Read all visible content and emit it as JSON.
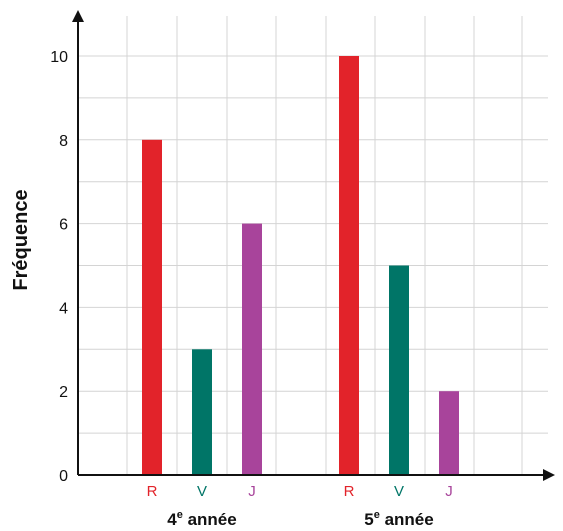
{
  "chart_data": {
    "type": "bar",
    "ylabel": "Fréquence",
    "xlabel": "",
    "ylim": [
      0,
      10.5
    ],
    "yticks": [
      "0",
      "2",
      "4",
      "6",
      "8",
      "10"
    ],
    "grid": true,
    "groups": [
      {
        "label": "4e année",
        "label_base": "4",
        "label_sup": "e",
        "label_rest": " année",
        "bars": [
          {
            "category": "R",
            "value": 8,
            "color": "#e2232a"
          },
          {
            "category": "V",
            "value": 3,
            "color": "#007567"
          },
          {
            "category": "J",
            "value": 6,
            "color": "#a8449b"
          }
        ]
      },
      {
        "label": "5e année",
        "label_base": "5",
        "label_sup": "e",
        "label_rest": " année",
        "bars": [
          {
            "category": "R",
            "value": 10,
            "color": "#e2232a"
          },
          {
            "category": "V",
            "value": 5,
            "color": "#007567"
          },
          {
            "category": "J",
            "value": 2,
            "color": "#a8449b"
          }
        ]
      }
    ]
  }
}
